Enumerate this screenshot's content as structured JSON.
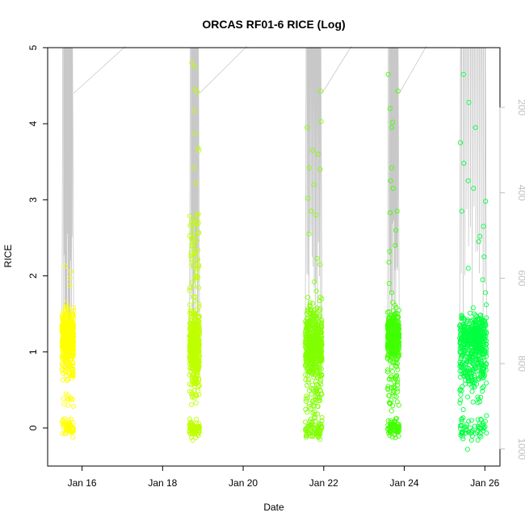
{
  "chart_data": {
    "type": "scatter",
    "title": "ORCAS RF01-6 RICE (Log)",
    "xlabel": "Date",
    "ylabel": "RICE",
    "ylim": [
      -0.5,
      5
    ],
    "y_ticks": [
      0,
      1,
      2,
      3,
      4,
      5
    ],
    "x_ticks": [
      "Jan 16",
      "Jan 18",
      "Jan 20",
      "Jan 22",
      "Jan 24",
      "Jan 26"
    ],
    "xlim": [
      "2016-01-15 03:30",
      "2016-01-26 09:00"
    ],
    "right_axis": {
      "ticks": [
        200,
        400,
        600,
        800,
        1000
      ],
      "range": [
        1040,
        60
      ],
      "color": "#bfbfbf"
    },
    "grid": false,
    "series": [
      {
        "color": "#ffff00",
        "time_range": [
          "2016-01-15 12:00",
          "2016-01-15 19:00"
        ],
        "bands": [
          {
            "center": 1.2,
            "spread": 0.33,
            "points": 420
          },
          {
            "center": 0.75,
            "spread": 0.15,
            "points": 35
          },
          {
            "center": 0.35,
            "spread": 0.12,
            "points": 10
          },
          {
            "center": 0.0,
            "spread": 0.1,
            "points": 50
          }
        ],
        "extremes": [
          2.13,
          1.97,
          2.06,
          1.87,
          0.45,
          -0.12
        ]
      },
      {
        "color": "#bfff00",
        "time_range": [
          "2016-01-18 16:00",
          "2016-01-18 22:00"
        ],
        "bands": [
          {
            "center": 1.1,
            "spread": 0.4,
            "points": 420
          },
          {
            "center": 0.6,
            "spread": 0.3,
            "points": 50
          },
          {
            "center": 2.3,
            "spread": 0.7,
            "points": 60
          },
          {
            "center": 0.0,
            "spread": 0.12,
            "points": 70
          }
        ],
        "extremes": [
          4.8,
          4.75,
          4.45,
          4.42,
          4.17,
          3.87,
          3.68,
          3.65,
          3.42,
          0.12,
          -0.16
        ]
      },
      {
        "color": "#80ff00",
        "time_range": [
          "2016-01-21 13:00",
          "2016-01-21 23:00"
        ],
        "bands": [
          {
            "center": 1.1,
            "spread": 0.45,
            "points": 480
          },
          {
            "center": 0.4,
            "spread": 0.3,
            "points": 50
          },
          {
            "center": 0.0,
            "spread": 0.12,
            "points": 70
          }
        ],
        "extremes": [
          4.43,
          4.03,
          3.95,
          3.65,
          3.6,
          3.42,
          3.4,
          3.2,
          3.02,
          2.85,
          2.8,
          2.55,
          2.23,
          2.15,
          1.92,
          1.8,
          1.72,
          -0.15
        ]
      },
      {
        "color": "#40ff00",
        "time_range": [
          "2016-01-23 14:00",
          "2016-01-23 21:00"
        ],
        "bands": [
          {
            "center": 1.2,
            "spread": 0.3,
            "points": 380
          },
          {
            "center": 0.6,
            "spread": 0.35,
            "points": 45
          },
          {
            "center": 0.0,
            "spread": 0.12,
            "points": 60
          }
        ],
        "extremes": [
          4.65,
          4.43,
          4.2,
          4.02,
          3.95,
          3.42,
          3.25,
          3.15,
          2.85,
          2.83,
          2.6,
          2.4,
          2.32,
          2.18,
          1.9,
          1.78,
          1.65,
          1.52,
          -0.12
        ]
      },
      {
        "color": "#00ff40",
        "time_range": [
          "2016-01-25 09:00",
          "2016-01-26 01:00"
        ],
        "bands": [
          {
            "center": 1.25,
            "spread": 0.25,
            "points": 220
          },
          {
            "center": 0.9,
            "spread": 0.5,
            "points": 280
          },
          {
            "center": 0.0,
            "spread": 0.15,
            "points": 60
          }
        ],
        "extremes": [
          4.65,
          4.28,
          3.95,
          3.75,
          3.48,
          3.25,
          3.15,
          2.98,
          2.85,
          2.65,
          2.52,
          2.45,
          2.25,
          2.1,
          1.95,
          1.78,
          1.62,
          -0.28
        ]
      }
    ]
  }
}
